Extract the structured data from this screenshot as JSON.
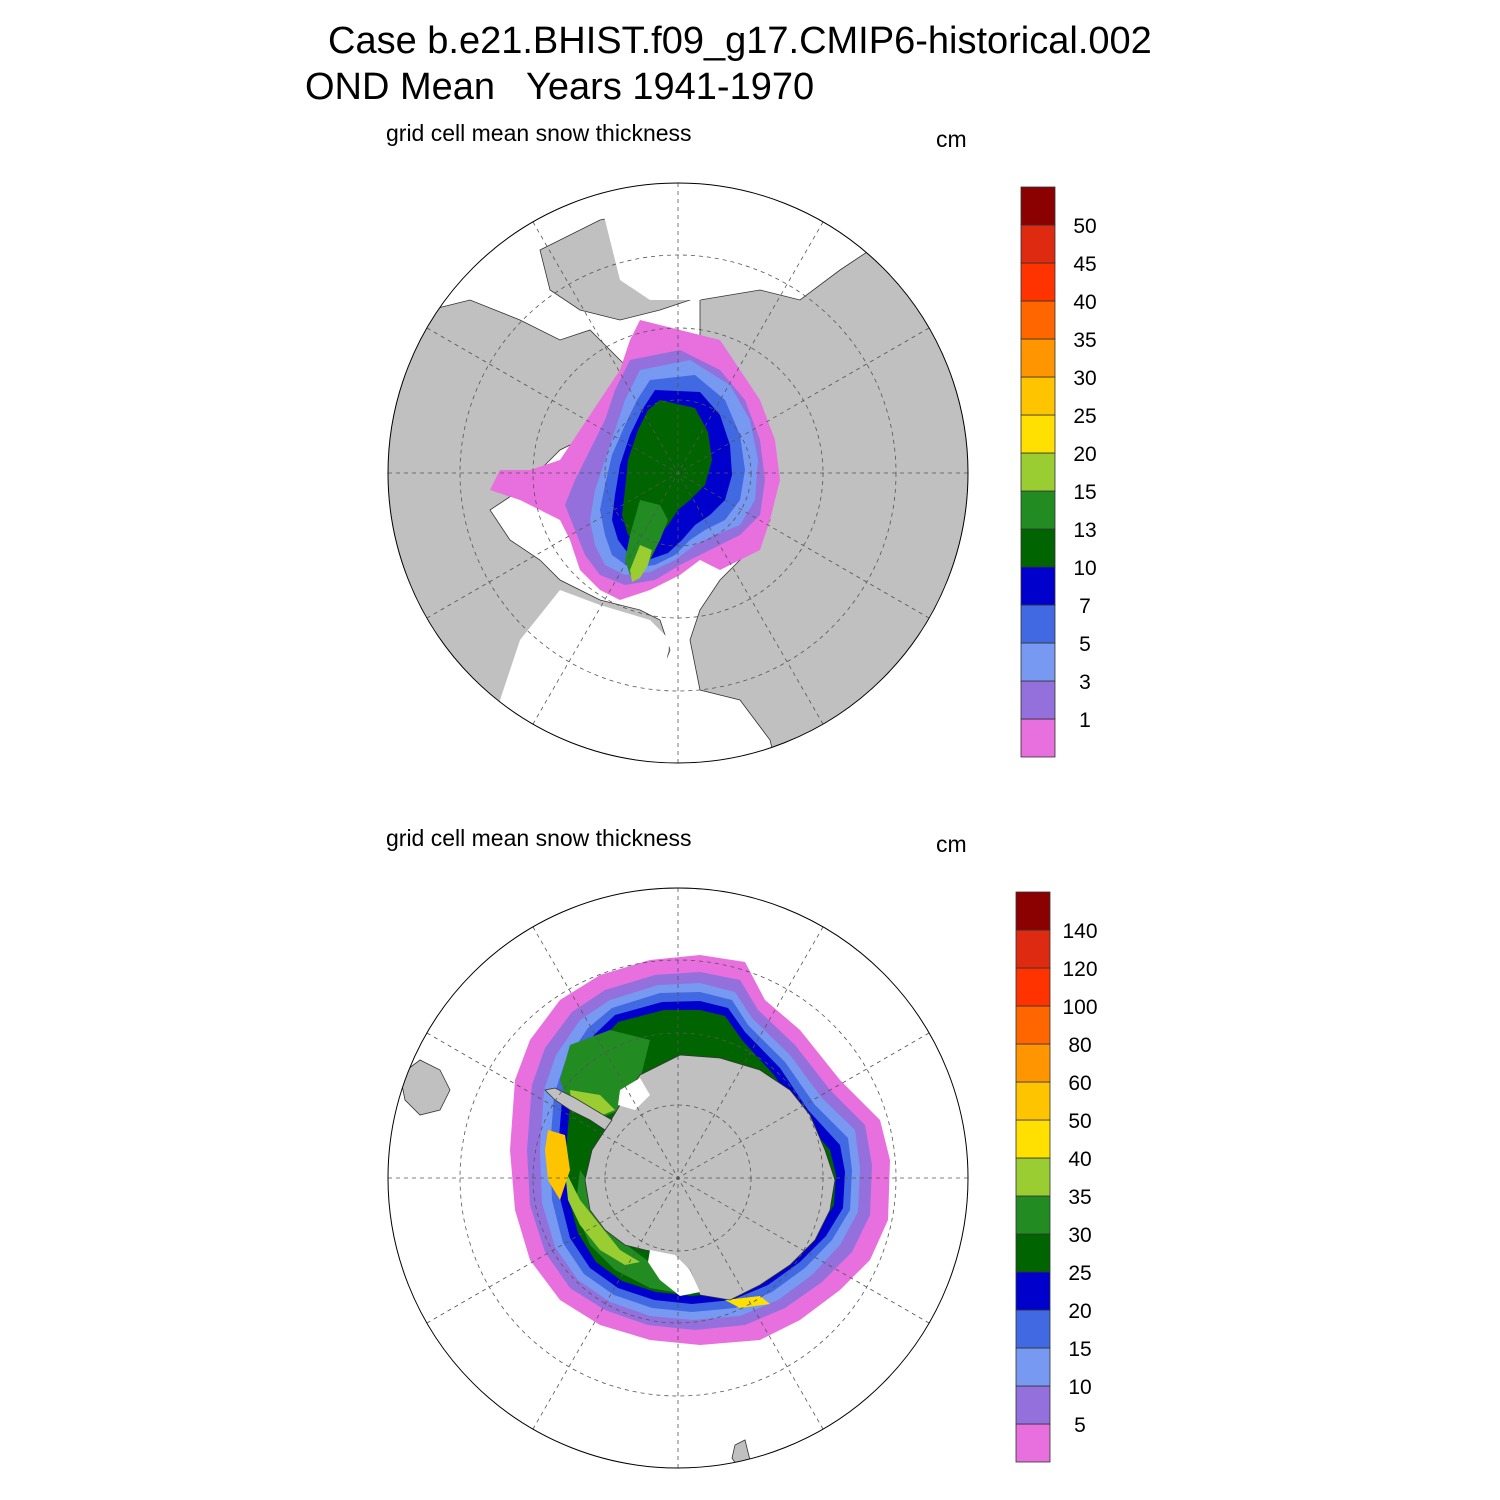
{
  "header": {
    "case_line": "Case b.e21.BHIST.f09_g17.CMIP6-historical.002",
    "period_line": "OND Mean   Years 1941-1970"
  },
  "panels": [
    {
      "hemisphere": "north",
      "variable_label": "grid cell mean snow thickness",
      "units": "cm",
      "colorbar": {
        "labels": [
          "1",
          "3",
          "5",
          "7",
          "10",
          "13",
          "15",
          "20",
          "25",
          "30",
          "35",
          "40",
          "45",
          "50"
        ],
        "colors": [
          "#e76fde",
          "#9370db",
          "#7799f2",
          "#4169e1",
          "#0000cd",
          "#006400",
          "#228b22",
          "#9acd32",
          "#ffe000",
          "#ffc400",
          "#ff9500",
          "#ff6600",
          "#ff3300",
          "#dd2a10",
          "#8b0000"
        ]
      }
    },
    {
      "hemisphere": "south",
      "variable_label": "grid cell mean snow thickness",
      "units": "cm",
      "colorbar": {
        "labels": [
          "5",
          "10",
          "15",
          "20",
          "25",
          "30",
          "35",
          "40",
          "50",
          "60",
          "80",
          "100",
          "120",
          "140"
        ],
        "colors": [
          "#e76fde",
          "#9370db",
          "#7799f2",
          "#4169e1",
          "#0000cd",
          "#006400",
          "#228b22",
          "#9acd32",
          "#ffe000",
          "#ffc400",
          "#ff9500",
          "#ff6600",
          "#ff3300",
          "#dd2a10",
          "#8b0000"
        ]
      }
    }
  ],
  "style": {
    "land_color": "#c0c0c0",
    "ocean_color": "#ffffff"
  }
}
